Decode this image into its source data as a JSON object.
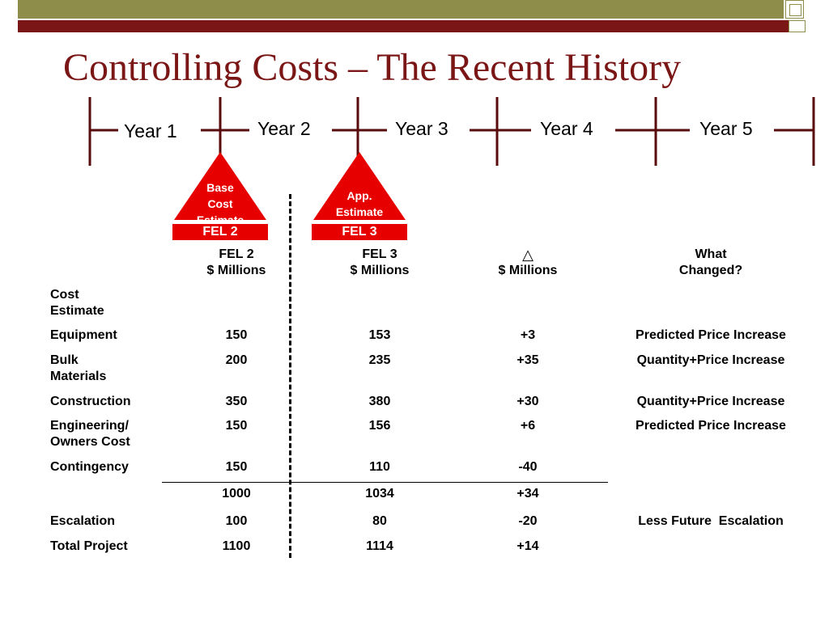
{
  "title": "Controlling Costs – The Recent History",
  "timeline": {
    "years": [
      "Year 1",
      "Year 2",
      "Year 3",
      "Year 4",
      "Year 5"
    ]
  },
  "markers": [
    {
      "label_lines": [
        "Base",
        "Cost",
        "Estimate"
      ],
      "stage": "FEL 2"
    },
    {
      "label_lines": [
        "App.",
        "Estimate"
      ],
      "stage": "FEL 3"
    }
  ],
  "table": {
    "headers": {
      "fel2": [
        "FEL 2",
        "$ Millions"
      ],
      "fel3": [
        "FEL 3",
        "$ Millions"
      ],
      "delta": [
        "△",
        "$ Millions"
      ],
      "changed": [
        "What",
        "Changed?"
      ]
    },
    "section_label": [
      "Cost",
      "Estimate"
    ],
    "rows": [
      {
        "label": [
          "Equipment"
        ],
        "fel2": "150",
        "fel3": "153",
        "delta": "+3",
        "changed": "Predicted Price Increase"
      },
      {
        "label": [
          "Bulk",
          "Materials"
        ],
        "fel2": "200",
        "fel3": "235",
        "delta": "+35",
        "changed": "Quantity+Price Increase"
      },
      {
        "label": [
          "Construction"
        ],
        "fel2": "350",
        "fel3": "380",
        "delta": "+30",
        "changed": "Quantity+Price Increase"
      },
      {
        "label": [
          "Engineering/",
          "Owners Cost"
        ],
        "fel2": "150",
        "fel3": "156",
        "delta": "+6",
        "changed": "Predicted Price Increase"
      },
      {
        "label": [
          "Contingency"
        ],
        "fel2": "150",
        "fel3": "110",
        "delta": "-40",
        "changed": ""
      }
    ],
    "subtotal": {
      "label": "",
      "fel2": "1000",
      "fel3": "1034",
      "delta": "+34"
    },
    "escalation": {
      "label": "Escalation",
      "fel2": "100",
      "fel3": "80",
      "delta": "-20",
      "changed": "Less Future  Escalation"
    },
    "total": {
      "label": "Total Project",
      "fel2": "1100",
      "fel3": "1114",
      "delta": "+14"
    }
  }
}
